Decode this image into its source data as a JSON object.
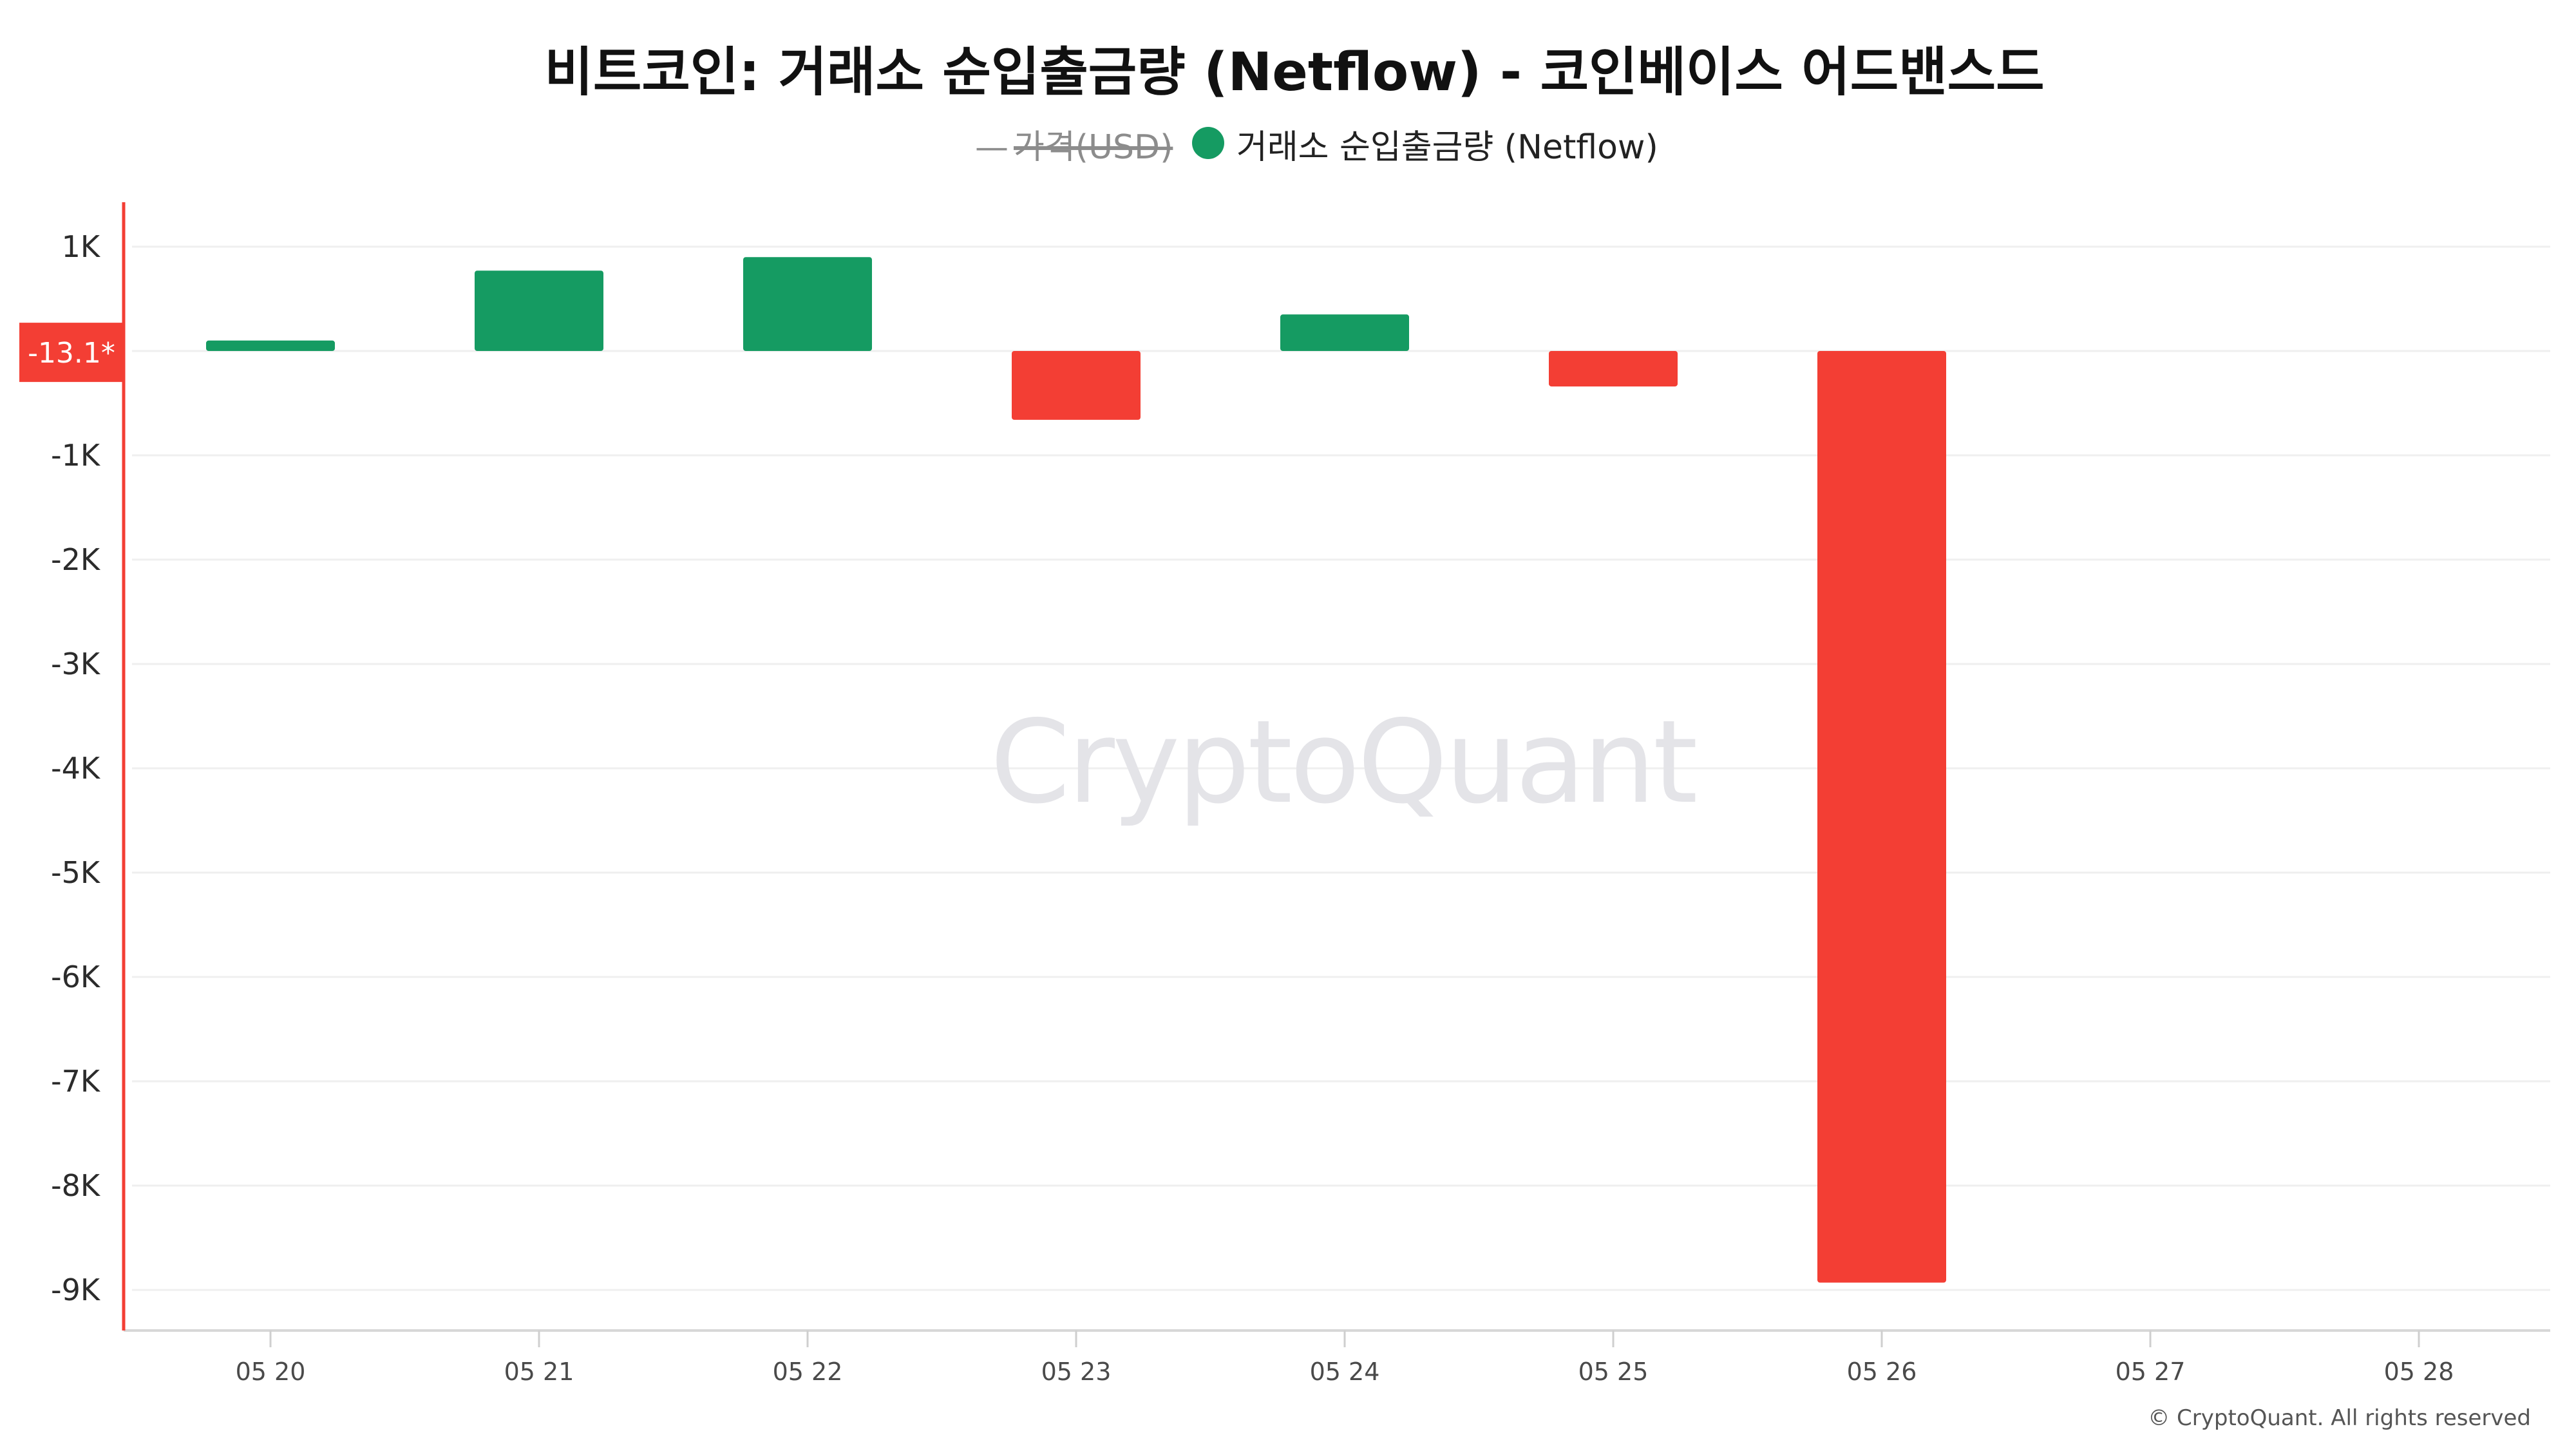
{
  "colors": {
    "positive": "#159b62",
    "negative": "#f33e34",
    "axis_left": "#f33e34",
    "grid": "#efefef",
    "axis_bottom": "#d7d7d7",
    "legend_price_muted": "#8c8c8c",
    "watermark": "#e4e4e8"
  },
  "legend": {
    "price_dash": "—",
    "price_label": "가격(USD)",
    "netflow_label": "거래소 순입출금량 (Netflow)",
    "price_hidden": true
  },
  "badge": {
    "label": "-13.1*"
  },
  "watermark": "CryptoQuant",
  "credit": "© CryptoQuant. All rights reserved",
  "chart_data": {
    "type": "bar",
    "title": "비트코인: 거래소 순입출금량 (Netflow) - 코인베이스 어드밴스드",
    "xlabel": "",
    "ylabel": "",
    "categories": [
      "05 20",
      "05 21",
      "05 22",
      "05 23",
      "05 24",
      "05 25",
      "05 26",
      "05 27",
      "05 28"
    ],
    "series": [
      {
        "name": "거래소 순입출금량 (Netflow)",
        "values": [
          100,
          770,
          900,
          -660,
          350,
          -340,
          -8930,
          null,
          null
        ]
      }
    ],
    "y_ticks": [
      {
        "value": 1000,
        "label": "1K"
      },
      {
        "value": -1000,
        "label": "-1K"
      },
      {
        "value": -2000,
        "label": "-2K"
      },
      {
        "value": -3000,
        "label": "-3K"
      },
      {
        "value": -4000,
        "label": "-4K"
      },
      {
        "value": -5000,
        "label": "-5K"
      },
      {
        "value": -6000,
        "label": "-6K"
      },
      {
        "value": -7000,
        "label": "-7K"
      },
      {
        "value": -8000,
        "label": "-8K"
      },
      {
        "value": -9000,
        "label": "-9K"
      }
    ],
    "current_value": -13.1,
    "ylim": [
      -9400,
      1400
    ],
    "grid": true,
    "legend_position": "top-center"
  }
}
